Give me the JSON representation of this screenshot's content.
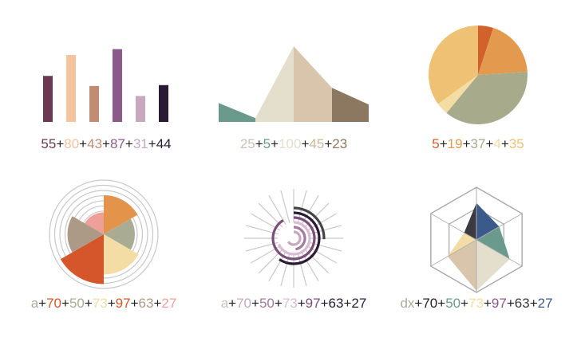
{
  "chart_data": [
    {
      "type": "bar",
      "values": [
        55,
        80,
        43,
        87,
        31,
        44
      ],
      "colors": [
        "#6b3a52",
        "#f6c39f",
        "#c08d72",
        "#8c5a8a",
        "#c7a8bf",
        "#2b1a33"
      ],
      "ylim": [
        0,
        100
      ],
      "formula": [
        "55",
        "+",
        "80",
        "+",
        "43",
        "+",
        "87",
        "+",
        "31",
        "+",
        "44"
      ],
      "formula_colors": [
        "#6b3a52",
        "#222222",
        "#f6c39f",
        "#222222",
        "#c08d72",
        "#222222",
        "#8c5a8a",
        "#222222",
        "#c7a8bf",
        "#222222",
        "#2b1a33"
      ]
    },
    {
      "type": "area",
      "values": [
        25,
        5,
        100,
        45,
        23
      ],
      "colors": [
        "#6a9a8c",
        "#e3dfcc",
        "#e3dfcc",
        "#d8c5ac",
        "#8c7860"
      ],
      "ylim": [
        0,
        100
      ],
      "formula": [
        "25",
        "+",
        "5",
        "+",
        "100",
        "+",
        "45",
        "+",
        "23"
      ],
      "formula_colors": [
        "#c9c2b8",
        "#222222",
        "#6a9a8c",
        "#222222",
        "#e3dfcc",
        "#222222",
        "#cdb79b",
        "#222222",
        "#8c7860"
      ]
    },
    {
      "type": "pie",
      "values": [
        5,
        19,
        37,
        4,
        35
      ],
      "colors": [
        "#d1622c",
        "#e39a4e",
        "#a7ab8c",
        "#f3dda4",
        "#eec174"
      ],
      "formula": [
        "5",
        "+",
        "19",
        "+",
        "37",
        "+",
        "4",
        "+",
        "35"
      ],
      "formula_colors": [
        "#d1622c",
        "#222222",
        "#e39a4e",
        "#222222",
        "#a7ab8c",
        "#222222",
        "#f3dda4",
        "#222222",
        "#eec174"
      ]
    },
    {
      "type": "polar-area",
      "values": [
        70,
        50,
        73,
        97,
        63,
        27
      ],
      "colors": [
        "#e3944a",
        "#a9ac92",
        "#f3dda4",
        "#d4562a",
        "#ad9a86",
        "#ee9f98"
      ],
      "rings": 8,
      "formula": [
        "a",
        "+",
        "70",
        "+",
        "50",
        "+",
        "73",
        "+",
        "97",
        "+",
        "63",
        "+",
        "27"
      ],
      "formula_colors": [
        "#b3aa9c",
        "#222222",
        "#d4562a",
        "#222222",
        "#a9ac92",
        "#222222",
        "#f3dda4",
        "#222222",
        "#d4562a",
        "#222222",
        "#ad9a86",
        "#222222",
        "#ee9f98"
      ]
    },
    {
      "type": "radial-arc",
      "values": [
        70,
        50,
        73,
        97,
        63,
        27
      ],
      "colors": [
        "#c7a8bf",
        "#a57aa0",
        "#d9bcd2",
        "#7b4f7a",
        "#2b1a33",
        "#444444"
      ],
      "formula": [
        "a",
        "+",
        "70",
        "+",
        "50",
        "+",
        "73",
        "+",
        "97",
        "+",
        "63",
        "+",
        "27"
      ],
      "formula_colors": [
        "#c9c2b8",
        "#222222",
        "#c7a8bf",
        "#222222",
        "#a57aa0",
        "#222222",
        "#d9bcd2",
        "#222222",
        "#7b4f7a",
        "#222222",
        "#2b1a33",
        "#222222",
        "#2b1a33"
      ]
    },
    {
      "type": "radar",
      "values": [
        70,
        50,
        73,
        97,
        63,
        27
      ],
      "colors": [
        "#3a5a8c",
        "#6a9a8c",
        "#e3dfcc",
        "#d8c5ac",
        "#f3dda4",
        "#3a3a40"
      ],
      "formula": [
        "dx",
        "+",
        "70",
        "+",
        "50",
        "+",
        "73",
        "+",
        "97",
        "+",
        "63",
        "+",
        "27"
      ],
      "formula_colors": [
        "#b3aa9c",
        "#222222",
        "#222222",
        "#222222",
        "#6a9a8c",
        "#222222",
        "#f3dda4",
        "#222222",
        "#8c5a8a",
        "#222222",
        "#3a3a40",
        "#222222",
        "#3a5a8c"
      ]
    }
  ]
}
